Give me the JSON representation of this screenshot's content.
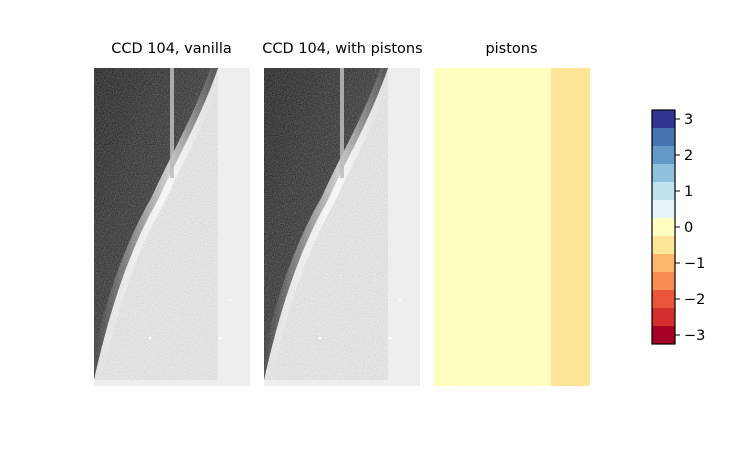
{
  "chart_data": [
    {
      "type": "heatmap",
      "title": "CCD 104, vanilla",
      "colormap": "grayscale",
      "description_values": {
        "background_level": "light gray",
        "dark_region": "upper-left wedge",
        "bright_edge": "diagonal band"
      }
    },
    {
      "type": "heatmap",
      "title": "CCD 104, with pistons",
      "colormap": "grayscale"
    },
    {
      "type": "heatmap",
      "title": "pistons",
      "colormap": "RdYlBu",
      "columns": [
        {
          "span": 0.75,
          "value": 0.0
        },
        {
          "span": 0.25,
          "value": -0.5
        }
      ],
      "colorbar": {
        "range": [
          -3.25,
          3.25
        ],
        "levels": 13,
        "ticks": [
          3,
          2,
          1,
          0,
          -1,
          -2,
          -3
        ],
        "tick_labels": [
          "3",
          "2",
          "1",
          "0",
          "−1",
          "−2",
          "−3"
        ],
        "colors": [
          "#313695",
          "#4574b3",
          "#649ac7",
          "#8fc3dd",
          "#bfe3ef",
          "#e6f5f8",
          "#ffffbf",
          "#fee597",
          "#fdb76b",
          "#f88d52",
          "#e95538",
          "#d42e2d",
          "#a50026"
        ]
      }
    }
  ]
}
